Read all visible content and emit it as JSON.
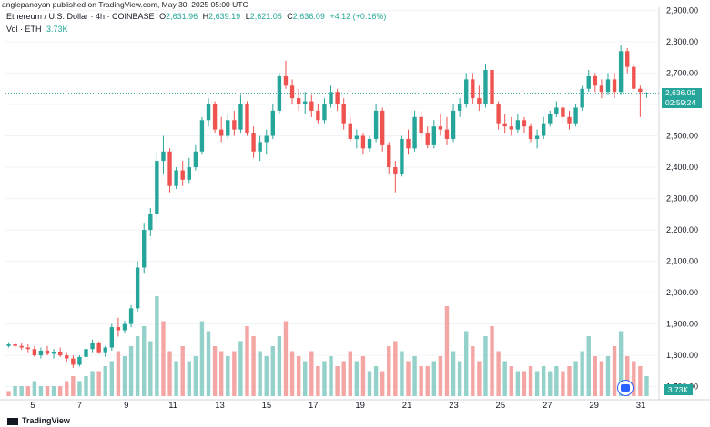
{
  "header": {
    "credit": "anglepanoyan published on TradingView.com, May 30, 2025 05:00 UTC",
    "symbol": "Ethereum / U.S. Dollar · 4h · COINBASE",
    "open_label": "O",
    "open_value": "2,631.96",
    "high_label": "H",
    "high_value": "2,639.19",
    "low_label": "L",
    "low_value": "2,621.05",
    "close_label": "C",
    "close_value": "2,636.09",
    "change": "+4.12 (+0.16%)",
    "vol_label": "Vol · ETH",
    "vol_value": "3.73K"
  },
  "price_tag": {
    "price": "2,636.09",
    "countdown": "02:59:24"
  },
  "vol_tag": "3.73K",
  "footer": {
    "brand": "TradingView"
  },
  "colors": {
    "up": "#26a69a",
    "down": "#ef5350",
    "vol_up": "#93d1ca",
    "vol_down": "#f4a6a4"
  },
  "chart_data": {
    "type": "candlestick",
    "timeframe": "4h",
    "y_ticks": [
      "2,900.00",
      "2,800.00",
      "2,700.00",
      "2,600.00",
      "2,500.00",
      "2,400.00",
      "2,300.00",
      "2,200.00",
      "2,100.00",
      "2,000.00",
      "1,900.00",
      "1,800.00",
      "1,700.00"
    ],
    "ylim": [
      1670,
      2910
    ],
    "x_ticks": [
      "5",
      "7",
      "9",
      "11",
      "13",
      "15",
      "17",
      "19",
      "21",
      "23",
      "25",
      "27",
      "29",
      "31"
    ],
    "last_price": 2636.09,
    "candles": [
      [
        1830,
        1842,
        1825,
        1835
      ],
      [
        1835,
        1845,
        1822,
        1830
      ],
      [
        1830,
        1840,
        1818,
        1825
      ],
      [
        1825,
        1835,
        1810,
        1820
      ],
      [
        1820,
        1830,
        1795,
        1800
      ],
      [
        1800,
        1825,
        1790,
        1815
      ],
      [
        1815,
        1830,
        1800,
        1805
      ],
      [
        1805,
        1820,
        1790,
        1812
      ],
      [
        1812,
        1825,
        1795,
        1800
      ],
      [
        1800,
        1810,
        1780,
        1790
      ],
      [
        1790,
        1800,
        1760,
        1770
      ],
      [
        1770,
        1800,
        1765,
        1795
      ],
      [
        1795,
        1830,
        1785,
        1820
      ],
      [
        1820,
        1850,
        1810,
        1840
      ],
      [
        1840,
        1845,
        1805,
        1810
      ],
      [
        1810,
        1830,
        1795,
        1825
      ],
      [
        1825,
        1900,
        1815,
        1890
      ],
      [
        1890,
        1920,
        1860,
        1880
      ],
      [
        1880,
        1910,
        1870,
        1900
      ],
      [
        1900,
        1960,
        1890,
        1950
      ],
      [
        1950,
        2100,
        1940,
        2080
      ],
      [
        2080,
        2220,
        2060,
        2200
      ],
      [
        2200,
        2270,
        2180,
        2250
      ],
      [
        2250,
        2450,
        2230,
        2420
      ],
      [
        2420,
        2500,
        2380,
        2450
      ],
      [
        2450,
        2460,
        2320,
        2340
      ],
      [
        2340,
        2400,
        2330,
        2390
      ],
      [
        2390,
        2420,
        2340,
        2360
      ],
      [
        2360,
        2430,
        2350,
        2400
      ],
      [
        2400,
        2470,
        2390,
        2450
      ],
      [
        2450,
        2560,
        2440,
        2550
      ],
      [
        2550,
        2620,
        2530,
        2600
      ],
      [
        2600,
        2610,
        2510,
        2520
      ],
      [
        2520,
        2560,
        2480,
        2500
      ],
      [
        2500,
        2570,
        2490,
        2550
      ],
      [
        2550,
        2580,
        2500,
        2520
      ],
      [
        2520,
        2630,
        2510,
        2600
      ],
      [
        2600,
        2610,
        2500,
        2510
      ],
      [
        2510,
        2530,
        2430,
        2450
      ],
      [
        2450,
        2500,
        2420,
        2480
      ],
      [
        2480,
        2520,
        2440,
        2500
      ],
      [
        2500,
        2600,
        2490,
        2580
      ],
      [
        2580,
        2700,
        2570,
        2690
      ],
      [
        2690,
        2740,
        2650,
        2660
      ],
      [
        2660,
        2680,
        2600,
        2620
      ],
      [
        2620,
        2650,
        2580,
        2600
      ],
      [
        2600,
        2640,
        2570,
        2610
      ],
      [
        2610,
        2630,
        2560,
        2580
      ],
      [
        2580,
        2600,
        2540,
        2550
      ],
      [
        2550,
        2620,
        2540,
        2600
      ],
      [
        2600,
        2660,
        2590,
        2640
      ],
      [
        2640,
        2650,
        2580,
        2600
      ],
      [
        2600,
        2620,
        2520,
        2540
      ],
      [
        2540,
        2560,
        2480,
        2490
      ],
      [
        2490,
        2520,
        2460,
        2500
      ],
      [
        2500,
        2510,
        2440,
        2460
      ],
      [
        2460,
        2500,
        2450,
        2490
      ],
      [
        2490,
        2600,
        2480,
        2580
      ],
      [
        2580,
        2590,
        2450,
        2470
      ],
      [
        2470,
        2480,
        2380,
        2400
      ],
      [
        2400,
        2420,
        2320,
        2380
      ],
      [
        2380,
        2500,
        2370,
        2490
      ],
      [
        2490,
        2520,
        2440,
        2460
      ],
      [
        2460,
        2580,
        2450,
        2560
      ],
      [
        2560,
        2580,
        2490,
        2510
      ],
      [
        2510,
        2530,
        2460,
        2470
      ],
      [
        2470,
        2550,
        2460,
        2530
      ],
      [
        2530,
        2570,
        2500,
        2520
      ],
      [
        2520,
        2560,
        2470,
        2490
      ],
      [
        2490,
        2600,
        2480,
        2580
      ],
      [
        2580,
        2620,
        2560,
        2600
      ],
      [
        2600,
        2700,
        2590,
        2680
      ],
      [
        2680,
        2700,
        2600,
        2620
      ],
      [
        2620,
        2660,
        2580,
        2600
      ],
      [
        2600,
        2730,
        2590,
        2710
      ],
      [
        2710,
        2720,
        2580,
        2600
      ],
      [
        2600,
        2610,
        2520,
        2540
      ],
      [
        2540,
        2570,
        2510,
        2530
      ],
      [
        2530,
        2560,
        2500,
        2520
      ],
      [
        2520,
        2570,
        2510,
        2550
      ],
      [
        2550,
        2560,
        2510,
        2530
      ],
      [
        2530,
        2540,
        2480,
        2490
      ],
      [
        2490,
        2520,
        2460,
        2500
      ],
      [
        2500,
        2560,
        2490,
        2540
      ],
      [
        2540,
        2580,
        2530,
        2570
      ],
      [
        2570,
        2610,
        2560,
        2590
      ],
      [
        2590,
        2600,
        2540,
        2560
      ],
      [
        2560,
        2580,
        2520,
        2540
      ],
      [
        2540,
        2600,
        2530,
        2590
      ],
      [
        2590,
        2660,
        2580,
        2650
      ],
      [
        2650,
        2710,
        2640,
        2690
      ],
      [
        2690,
        2700,
        2640,
        2660
      ],
      [
        2660,
        2680,
        2620,
        2640
      ],
      [
        2640,
        2700,
        2630,
        2680
      ],
      [
        2680,
        2700,
        2620,
        2640
      ],
      [
        2640,
        2790,
        2630,
        2770
      ],
      [
        2770,
        2780,
        2700,
        2720
      ],
      [
        2720,
        2730,
        2640,
        2650
      ],
      [
        2650,
        2660,
        2560,
        2640
      ],
      [
        2631.96,
        2639.19,
        2621.05,
        2636.09
      ]
    ],
    "volume": [
      [
        1,
        0
      ],
      [
        2,
        1
      ],
      [
        2,
        1
      ],
      [
        2,
        0
      ],
      [
        3,
        1
      ],
      [
        2,
        1
      ],
      [
        2,
        0
      ],
      [
        2,
        1
      ],
      [
        2,
        0
      ],
      [
        3,
        0
      ],
      [
        4,
        0
      ],
      [
        3,
        1
      ],
      [
        4,
        1
      ],
      [
        5,
        1
      ],
      [
        5,
        0
      ],
      [
        6,
        1
      ],
      [
        7,
        1
      ],
      [
        9,
        0
      ],
      [
        8,
        1
      ],
      [
        10,
        1
      ],
      [
        12,
        1
      ],
      [
        14,
        1
      ],
      [
        11,
        1
      ],
      [
        20,
        1
      ],
      [
        15,
        0
      ],
      [
        9,
        0
      ],
      [
        7,
        1
      ],
      [
        10,
        0
      ],
      [
        7,
        1
      ],
      [
        8,
        1
      ],
      [
        15,
        1
      ],
      [
        13,
        1
      ],
      [
        10,
        0
      ],
      [
        9,
        0
      ],
      [
        8,
        1
      ],
      [
        9,
        0
      ],
      [
        11,
        1
      ],
      [
        14,
        0
      ],
      [
        12,
        0
      ],
      [
        9,
        1
      ],
      [
        8,
        1
      ],
      [
        10,
        1
      ],
      [
        12,
        1
      ],
      [
        15,
        0
      ],
      [
        9,
        0
      ],
      [
        8,
        0
      ],
      [
        7,
        1
      ],
      [
        9,
        0
      ],
      [
        6,
        0
      ],
      [
        7,
        1
      ],
      [
        8,
        1
      ],
      [
        6,
        0
      ],
      [
        7,
        0
      ],
      [
        9,
        0
      ],
      [
        7,
        1
      ],
      [
        8,
        0
      ],
      [
        5,
        1
      ],
      [
        6,
        1
      ],
      [
        5,
        0
      ],
      [
        10,
        0
      ],
      [
        11,
        0
      ],
      [
        9,
        1
      ],
      [
        7,
        0
      ],
      [
        8,
        1
      ],
      [
        6,
        0
      ],
      [
        6,
        0
      ],
      [
        7,
        1
      ],
      [
        8,
        0
      ],
      [
        18,
        0
      ],
      [
        9,
        1
      ],
      [
        7,
        1
      ],
      [
        13,
        1
      ],
      [
        10,
        0
      ],
      [
        7,
        0
      ],
      [
        12,
        1
      ],
      [
        14,
        0
      ],
      [
        9,
        0
      ],
      [
        7,
        1
      ],
      [
        6,
        0
      ],
      [
        5,
        1
      ],
      [
        5,
        0
      ],
      [
        6,
        0
      ],
      [
        5,
        1
      ],
      [
        6,
        1
      ],
      [
        5,
        1
      ],
      [
        6,
        1
      ],
      [
        5,
        0
      ],
      [
        6,
        0
      ],
      [
        7,
        1
      ],
      [
        9,
        1
      ],
      [
        12,
        1
      ],
      [
        8,
        0
      ],
      [
        7,
        0
      ],
      [
        8,
        1
      ],
      [
        10,
        0
      ],
      [
        13,
        1
      ],
      [
        8,
        0
      ],
      [
        7,
        0
      ],
      [
        6,
        0
      ],
      [
        4,
        1
      ]
    ]
  }
}
